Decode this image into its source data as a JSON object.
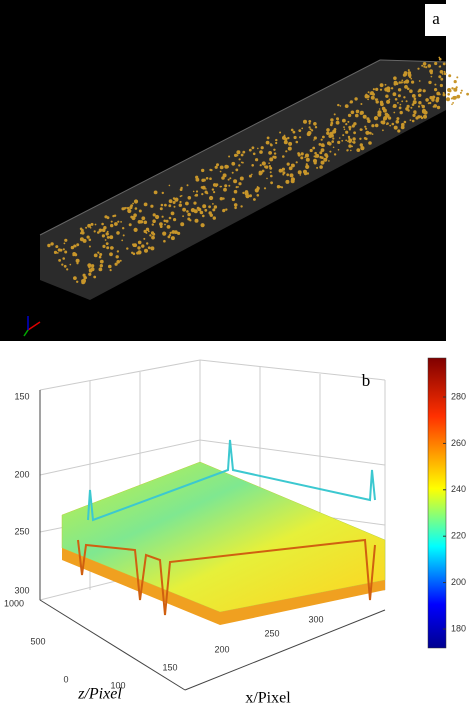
{
  "panels": [
    {
      "label": "a"
    },
    {
      "label": "b",
      "vertical_ticks": [
        "150",
        "200",
        "250",
        "300"
      ],
      "z_ticks": [
        "1000",
        "500",
        "0"
      ],
      "x_ticks": [
        "100",
        "150",
        "200",
        "250",
        "300"
      ],
      "colorbar_ticks": [
        "280",
        "260",
        "240",
        "220",
        "200",
        "180"
      ],
      "z_label": "z/Pixel",
      "x_label": "x/Pixel"
    }
  ]
}
